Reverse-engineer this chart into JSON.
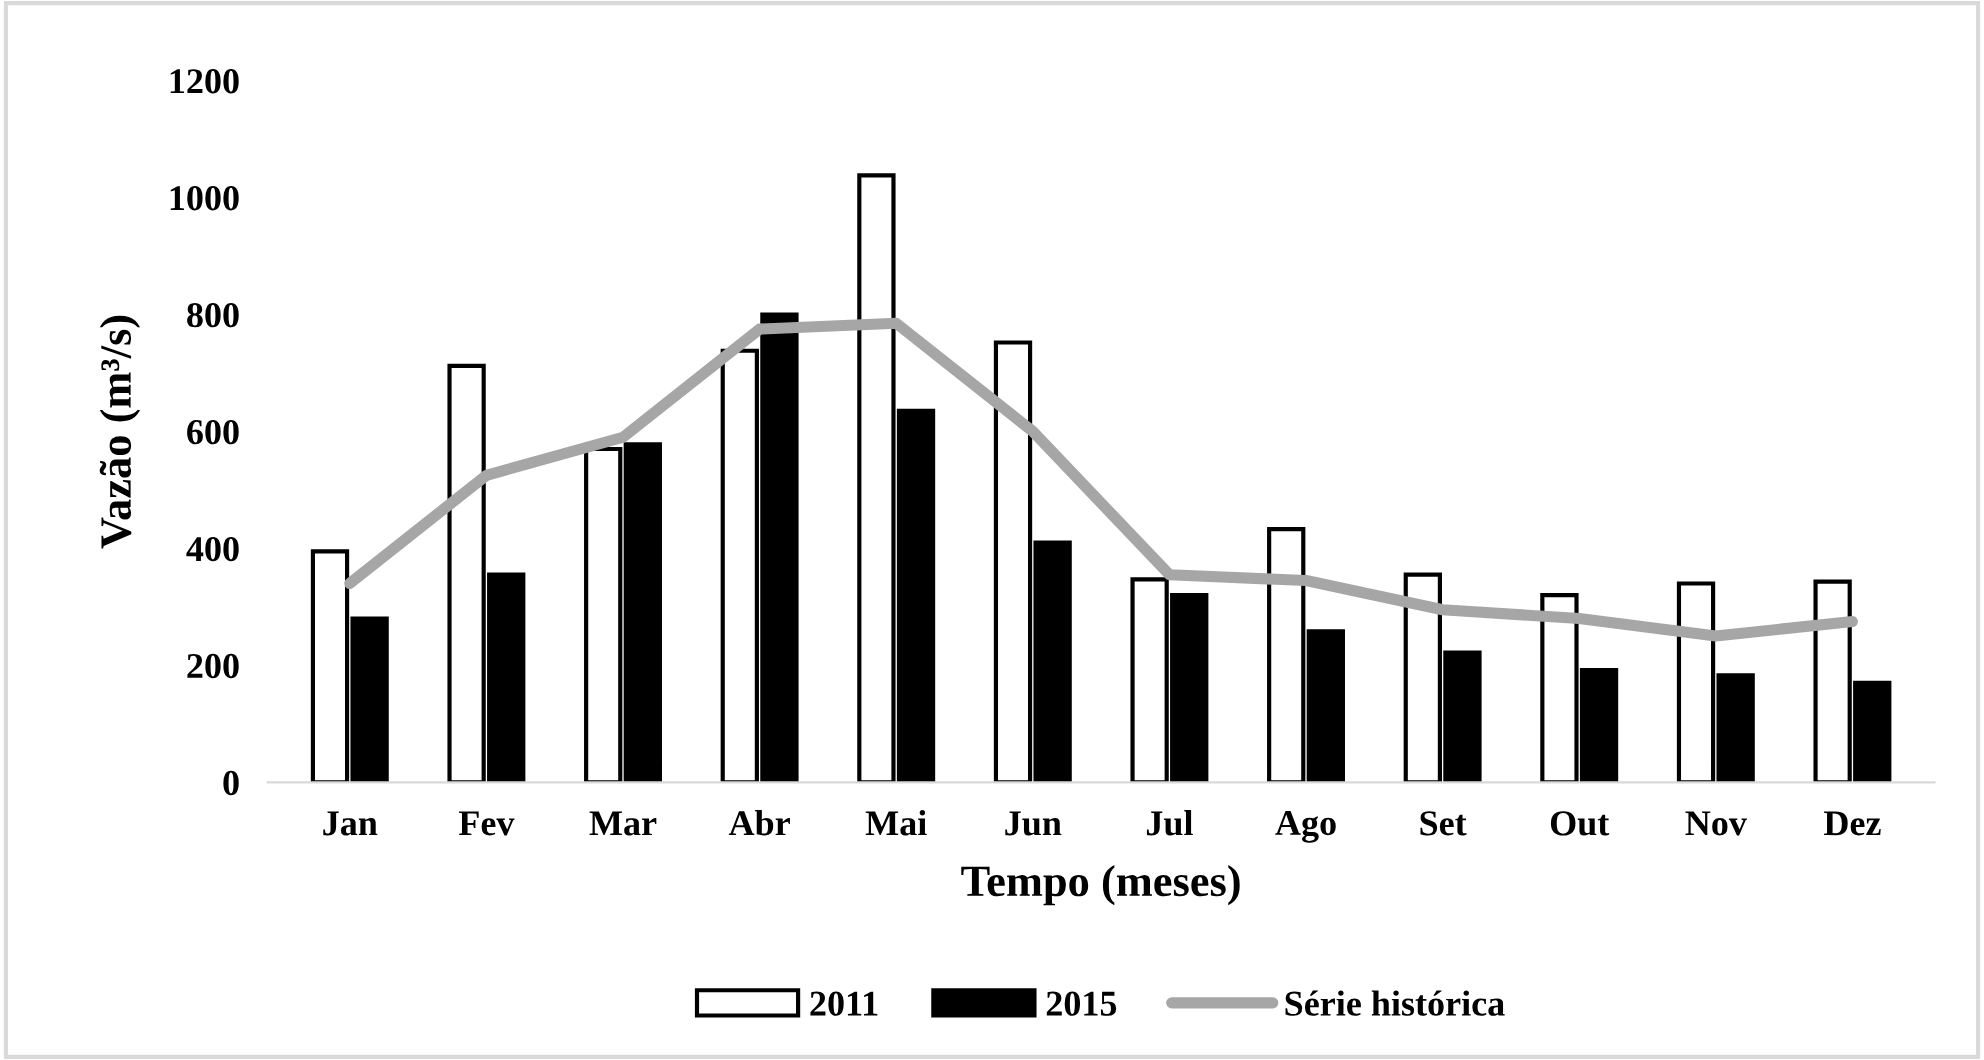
{
  "chart_data": {
    "type": "bar",
    "xlabel": "Tempo (meses)",
    "ylabel": "Vazão (m³/s)",
    "categories": [
      "Jan",
      "Fev",
      "Mar",
      "Abr",
      "Mai",
      "Jun",
      "Jul",
      "Ago",
      "Set",
      "Out",
      "Nov",
      "Dez"
    ],
    "series": [
      {
        "name": "2011",
        "color": "#ffffff",
        "values": [
          395,
          712,
          570,
          738,
          1038,
          752,
          347,
          433,
          355,
          320,
          340,
          343
        ]
      },
      {
        "name": "2015",
        "color": "#000000",
        "values": [
          280,
          355,
          578,
          800,
          635,
          410,
          320,
          258,
          222,
          192,
          183,
          170
        ]
      },
      {
        "name": "Série histórica",
        "type": "line",
        "color": "#a6a6a6",
        "values": [
          340,
          525,
          590,
          775,
          785,
          600,
          355,
          345,
          295,
          280,
          250,
          275
        ]
      }
    ],
    "ylim": [
      0,
      1200
    ],
    "yticks": [
      0,
      200,
      400,
      600,
      800,
      1000,
      1200
    ],
    "grid": false,
    "legend": "bottom"
  }
}
